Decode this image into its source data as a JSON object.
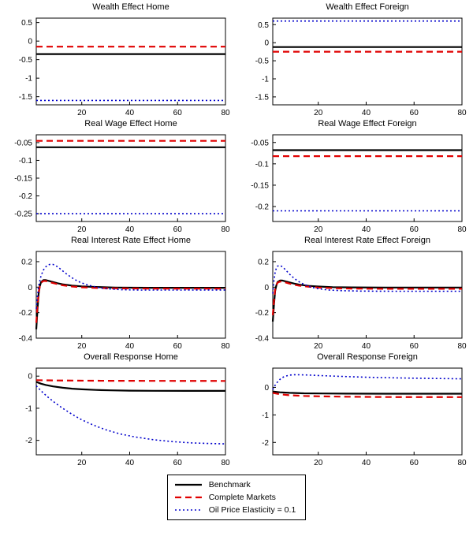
{
  "figure": {
    "background": "#ffffff"
  },
  "colors": {
    "benchmark": "#000000",
    "complete_markets": "#e00000",
    "oil_price_elasticity": "#0000cc",
    "axis": "#000000"
  },
  "legend": {
    "items": [
      {
        "label": "Benchmark",
        "style": "solid",
        "color": "#000000"
      },
      {
        "label": "Complete Markets",
        "style": "dashed",
        "color": "#e00000"
      },
      {
        "label": "Oil Price Elasticity = 0.1",
        "style": "dotted",
        "color": "#0000cc"
      }
    ]
  },
  "chart_data": [
    {
      "type": "line",
      "title": "Wealth Effect Home",
      "xlim": [
        1,
        80
      ],
      "ylim": [
        -1.72,
        0.62
      ],
      "xticks": [
        20,
        40,
        60,
        80
      ],
      "yticks": [
        0.5,
        0,
        -0.5,
        -1,
        -1.5
      ],
      "series": [
        {
          "name": "Benchmark",
          "style": "solid",
          "color": "#000000",
          "x": [
            1,
            80
          ],
          "y": [
            -0.35,
            -0.35
          ]
        },
        {
          "name": "Complete Markets",
          "style": "dashed",
          "color": "#e00000",
          "x": [
            1,
            80
          ],
          "y": [
            -0.15,
            -0.15
          ]
        },
        {
          "name": "Oil Price Elasticity = 0.1",
          "style": "dotted",
          "color": "#0000cc",
          "x": [
            1,
            80
          ],
          "y": [
            -1.6,
            -1.6
          ]
        }
      ]
    },
    {
      "type": "line",
      "title": "Wealth Effect Foreign",
      "xlim": [
        1,
        80
      ],
      "ylim": [
        -1.72,
        0.68
      ],
      "xticks": [
        20,
        40,
        60,
        80
      ],
      "yticks": [
        0.5,
        0,
        -0.5,
        -1,
        -1.5
      ],
      "series": [
        {
          "name": "Benchmark",
          "style": "solid",
          "color": "#000000",
          "x": [
            1,
            80
          ],
          "y": [
            -0.12,
            -0.12
          ]
        },
        {
          "name": "Complete Markets",
          "style": "dashed",
          "color": "#e00000",
          "x": [
            1,
            80
          ],
          "y": [
            -0.25,
            -0.25
          ]
        },
        {
          "name": "Oil Price Elasticity = 0.1",
          "style": "dotted",
          "color": "#0000cc",
          "x": [
            1,
            80
          ],
          "y": [
            0.6,
            0.6
          ]
        }
      ]
    },
    {
      "type": "line",
      "title": "Real Wage Effect Home",
      "xlim": [
        1,
        80
      ],
      "ylim": [
        -0.272,
        -0.028
      ],
      "xticks": [
        20,
        40,
        60,
        80
      ],
      "yticks": [
        -0.05,
        -0.1,
        -0.15,
        -0.2,
        -0.25
      ],
      "series": [
        {
          "name": "Benchmark",
          "style": "solid",
          "color": "#000000",
          "x": [
            1,
            80
          ],
          "y": [
            -0.063,
            -0.063
          ]
        },
        {
          "name": "Complete Markets",
          "style": "dashed",
          "color": "#e00000",
          "x": [
            1,
            80
          ],
          "y": [
            -0.045,
            -0.045
          ]
        },
        {
          "name": "Oil Price Elasticity = 0.1",
          "style": "dotted",
          "color": "#0000cc",
          "x": [
            1,
            80
          ],
          "y": [
            -0.25,
            -0.25
          ]
        }
      ]
    },
    {
      "type": "line",
      "title": "Real Wage Effect Foreign",
      "xlim": [
        1,
        80
      ],
      "ylim": [
        -0.235,
        -0.032
      ],
      "xticks": [
        20,
        40,
        60,
        80
      ],
      "yticks": [
        -0.05,
        -0.1,
        -0.15,
        -0.2
      ],
      "series": [
        {
          "name": "Benchmark",
          "style": "solid",
          "color": "#000000",
          "x": [
            1,
            80
          ],
          "y": [
            -0.068,
            -0.068
          ]
        },
        {
          "name": "Complete Markets",
          "style": "dashed",
          "color": "#e00000",
          "x": [
            1,
            80
          ],
          "y": [
            -0.082,
            -0.082
          ]
        },
        {
          "name": "Oil Price Elasticity = 0.1",
          "style": "dotted",
          "color": "#0000cc",
          "x": [
            1,
            80
          ],
          "y": [
            -0.21,
            -0.21
          ]
        }
      ]
    },
    {
      "type": "line",
      "title": "Real Interest Rate Effect Home",
      "xlim": [
        1,
        80
      ],
      "ylim": [
        -0.4,
        0.28
      ],
      "xticks": [
        20,
        40,
        60,
        80
      ],
      "yticks": [
        0.2,
        0,
        -0.2,
        -0.4
      ],
      "series": [
        {
          "name": "Benchmark",
          "style": "solid",
          "color": "#000000",
          "x": [
            1,
            1.5,
            2,
            2.5,
            3,
            4,
            5,
            6,
            8,
            10,
            12,
            16,
            20,
            26,
            34,
            48,
            80
          ],
          "y": [
            -0.33,
            -0.18,
            -0.05,
            0.01,
            0.04,
            0.055,
            0.055,
            0.05,
            0.04,
            0.03,
            0.022,
            0.012,
            0.006,
            0.001,
            -0.003,
            -0.005,
            -0.005
          ]
        },
        {
          "name": "Complete Markets",
          "style": "dashed",
          "color": "#e00000",
          "x": [
            1,
            1.5,
            2,
            2.5,
            3,
            4,
            5,
            6,
            8,
            10,
            12,
            16,
            20,
            26,
            34,
            48,
            80
          ],
          "y": [
            -0.28,
            -0.15,
            -0.04,
            0.01,
            0.035,
            0.048,
            0.048,
            0.042,
            0.032,
            0.023,
            0.015,
            0.005,
            -0.001,
            -0.006,
            -0.009,
            -0.011,
            -0.011
          ]
        },
        {
          "name": "Oil Price Elasticity = 0.1",
          "style": "dotted",
          "color": "#0000cc",
          "x": [
            1,
            1.5,
            2,
            3,
            4,
            5,
            6,
            7,
            8,
            9,
            10,
            12,
            14,
            16,
            18,
            20,
            23,
            26,
            30,
            36,
            44,
            60,
            80
          ],
          "y": [
            -0.17,
            -0.07,
            0.01,
            0.09,
            0.135,
            0.16,
            0.175,
            0.18,
            0.178,
            0.17,
            0.158,
            0.128,
            0.098,
            0.072,
            0.05,
            0.033,
            0.014,
            0.0,
            -0.012,
            -0.02,
            -0.023,
            -0.023,
            -0.022
          ]
        }
      ]
    },
    {
      "type": "line",
      "title": "Real Interest Rate Effect Foreign",
      "xlim": [
        1,
        80
      ],
      "ylim": [
        -0.4,
        0.28
      ],
      "xticks": [
        20,
        40,
        60,
        80
      ],
      "yticks": [
        0.2,
        0,
        -0.2,
        -0.4
      ],
      "series": [
        {
          "name": "Benchmark",
          "style": "solid",
          "color": "#000000",
          "x": [
            1,
            1.5,
            2,
            2.5,
            3,
            4,
            5,
            6,
            8,
            10,
            12,
            16,
            20,
            26,
            34,
            48,
            80
          ],
          "y": [
            -0.27,
            -0.14,
            -0.03,
            0.015,
            0.04,
            0.052,
            0.052,
            0.047,
            0.037,
            0.028,
            0.02,
            0.01,
            0.005,
            0.0,
            -0.002,
            -0.003,
            -0.003
          ]
        },
        {
          "name": "Complete Markets",
          "style": "dashed",
          "color": "#e00000",
          "x": [
            1,
            1.5,
            2,
            2.5,
            3,
            4,
            5,
            6,
            8,
            10,
            12,
            16,
            20,
            26,
            34,
            48,
            80
          ],
          "y": [
            -0.22,
            -0.11,
            -0.02,
            0.015,
            0.035,
            0.044,
            0.043,
            0.038,
            0.028,
            0.019,
            0.012,
            0.003,
            -0.003,
            -0.008,
            -0.011,
            -0.013,
            -0.013
          ]
        },
        {
          "name": "Oil Price Elasticity = 0.1",
          "style": "dotted",
          "color": "#0000cc",
          "x": [
            1,
            1.5,
            2,
            2.5,
            3,
            4,
            5,
            6,
            8,
            10,
            12,
            14,
            17,
            20,
            24,
            30,
            38,
            50,
            80
          ],
          "y": [
            -0.05,
            0.05,
            0.115,
            0.15,
            0.165,
            0.17,
            0.16,
            0.142,
            0.102,
            0.068,
            0.042,
            0.022,
            0.0,
            -0.012,
            -0.022,
            -0.028,
            -0.031,
            -0.032,
            -0.032
          ]
        }
      ]
    },
    {
      "type": "line",
      "title": "Overall Response Home",
      "xlim": [
        1,
        80
      ],
      "ylim": [
        -2.45,
        0.25
      ],
      "xticks": [
        20,
        40,
        60,
        80
      ],
      "yticks": [
        0,
        -1,
        -2
      ],
      "series": [
        {
          "name": "Benchmark",
          "style": "solid",
          "color": "#000000",
          "x": [
            1,
            3,
            5,
            8,
            12,
            16,
            20,
            26,
            32,
            40,
            50,
            64,
            80
          ],
          "y": [
            -0.18,
            -0.235,
            -0.275,
            -0.32,
            -0.36,
            -0.39,
            -0.41,
            -0.43,
            -0.443,
            -0.452,
            -0.458,
            -0.46,
            -0.46
          ]
        },
        {
          "name": "Complete Markets",
          "style": "dashed",
          "color": "#e00000",
          "x": [
            1,
            10,
            30,
            80
          ],
          "y": [
            -0.125,
            -0.135,
            -0.145,
            -0.15
          ]
        },
        {
          "name": "Oil Price Elasticity = 0.1",
          "style": "dotted",
          "color": "#0000cc",
          "x": [
            1,
            2,
            4,
            6,
            9,
            12,
            16,
            20,
            25,
            30,
            36,
            42,
            50,
            58,
            66,
            74,
            80
          ],
          "y": [
            -0.3,
            -0.38,
            -0.53,
            -0.66,
            -0.84,
            -1.0,
            -1.19,
            -1.36,
            -1.53,
            -1.67,
            -1.8,
            -1.89,
            -1.98,
            -2.04,
            -2.08,
            -2.1,
            -2.11
          ]
        }
      ]
    },
    {
      "type": "line",
      "title": "Overall Response Foreign",
      "xlim": [
        1,
        80
      ],
      "ylim": [
        -2.45,
        0.7
      ],
      "xticks": [
        20,
        40,
        60,
        80
      ],
      "yticks": [
        0,
        -1,
        -2
      ],
      "series": [
        {
          "name": "Benchmark",
          "style": "solid",
          "color": "#000000",
          "x": [
            1,
            4,
            8,
            14,
            22,
            32,
            48,
            80
          ],
          "y": [
            -0.15,
            -0.18,
            -0.2,
            -0.215,
            -0.222,
            -0.227,
            -0.23,
            -0.23
          ]
        },
        {
          "name": "Complete Markets",
          "style": "dashed",
          "color": "#e00000",
          "x": [
            1,
            4,
            8,
            14,
            22,
            32,
            48,
            80
          ],
          "y": [
            -0.2,
            -0.25,
            -0.285,
            -0.31,
            -0.328,
            -0.34,
            -0.35,
            -0.355
          ]
        },
        {
          "name": "Oil Price Elasticity = 0.1",
          "style": "dotted",
          "color": "#0000cc",
          "x": [
            1,
            2,
            3,
            4,
            5,
            6,
            8,
            10,
            12,
            16,
            20,
            26,
            34,
            44,
            58,
            80
          ],
          "y": [
            -0.08,
            0.08,
            0.2,
            0.29,
            0.355,
            0.4,
            0.445,
            0.46,
            0.458,
            0.447,
            0.432,
            0.41,
            0.385,
            0.36,
            0.335,
            0.31
          ]
        }
      ]
    }
  ]
}
